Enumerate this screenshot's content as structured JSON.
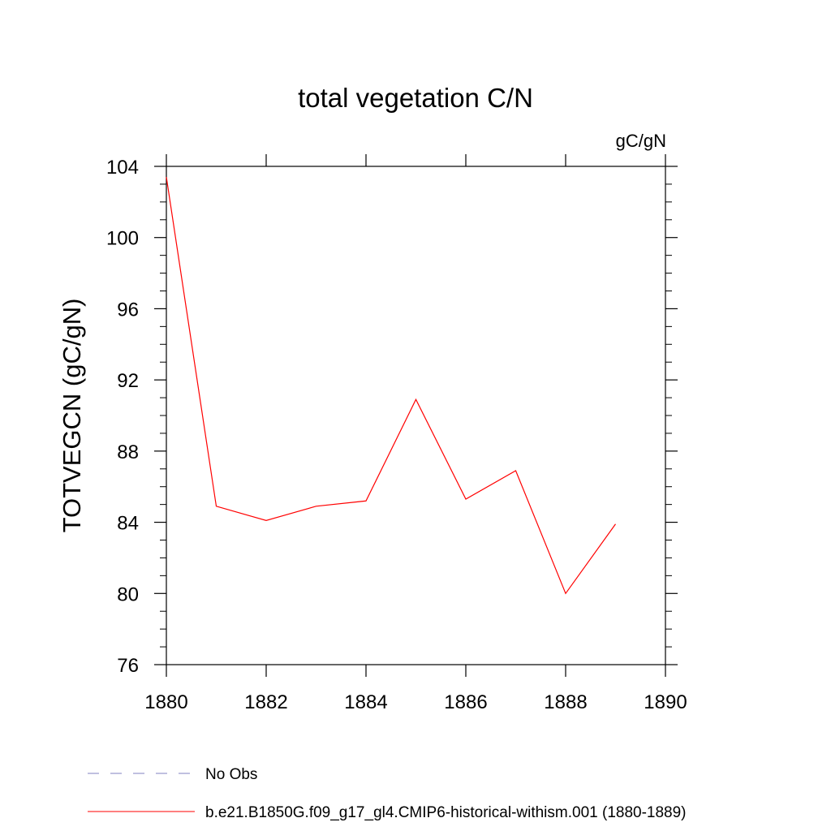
{
  "chart_data": {
    "type": "line",
    "title": "total vegetation C/N",
    "units": "gC/gN",
    "xlabel": "",
    "ylabel": "TOTVEGCN  (gC/gN)",
    "xlim": [
      1880,
      1890
    ],
    "ylim": [
      76,
      104
    ],
    "x_ticks": [
      1880,
      1882,
      1884,
      1886,
      1888,
      1890
    ],
    "y_ticks": [
      76,
      80,
      84,
      88,
      92,
      96,
      100,
      104
    ],
    "grid": false,
    "legend_position": "bottom",
    "series": [
      {
        "name": "b.e21.B1850G.f09_g17_gl4.CMIP6-historical-withism.001 (1880-1889)",
        "color": "#ff0000",
        "style": "solid",
        "x": [
          1880,
          1881,
          1882,
          1883,
          1884,
          1885,
          1886,
          1887,
          1888,
          1889
        ],
        "y": [
          103.4,
          84.9,
          84.1,
          84.9,
          85.2,
          90.9,
          85.3,
          86.9,
          80.0,
          83.9
        ]
      }
    ],
    "legend_entries": [
      {
        "label": "No Obs",
        "color": "#8080c0",
        "style": "dashed"
      },
      {
        "label": "b.e21.B1850G.f09_g17_gl4.CMIP6-historical-withism.001 (1880-1889)",
        "color": "#ff0000",
        "style": "solid"
      }
    ]
  }
}
